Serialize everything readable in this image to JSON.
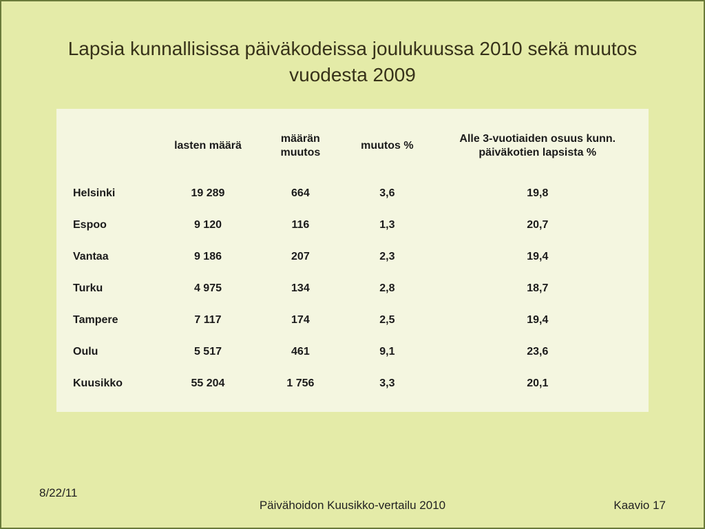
{
  "slide": {
    "title": "Lapsia kunnallisissa päiväkodeissa joulukuussa 2010 sekä muutos vuodesta 2009",
    "background_color": "#e4eba8",
    "border_color": "#6a7a3a",
    "table_background": "#f4f6e0",
    "text_color": "#1b1b1b",
    "title_color": "#37321a",
    "title_fontsize": 28,
    "header_fontsize": 16,
    "cell_fontsize": 16
  },
  "table": {
    "columns": [
      "",
      "lasten määrä",
      "määrän muutos",
      "muutos  %",
      "Alle 3-vuotiaiden osuus kunn. päiväkotien lapsista %"
    ],
    "column_widths_pct": [
      16,
      18,
      14,
      16,
      36
    ],
    "rows": [
      {
        "label": "Helsinki",
        "count": "19 289",
        "change": "664",
        "change_pct": "3,6",
        "under3_pct": "19,8"
      },
      {
        "label": "Espoo",
        "count": "9 120",
        "change": "116",
        "change_pct": "1,3",
        "under3_pct": "20,7"
      },
      {
        "label": "Vantaa",
        "count": "9 186",
        "change": "207",
        "change_pct": "2,3",
        "under3_pct": "19,4"
      },
      {
        "label": "Turku",
        "count": "4 975",
        "change": "134",
        "change_pct": "2,8",
        "under3_pct": "18,7"
      },
      {
        "label": "Tampere",
        "count": "7 117",
        "change": "174",
        "change_pct": "2,5",
        "under3_pct": "19,4"
      },
      {
        "label": "Oulu",
        "count": "5 517",
        "change": "461",
        "change_pct": "9,1",
        "under3_pct": "23,6"
      },
      {
        "label": "Kuusikko",
        "count": "55 204",
        "change": "1 756",
        "change_pct": "3,3",
        "under3_pct": "20,1"
      }
    ]
  },
  "footer": {
    "date": "8/22/11",
    "center": "Päivähoidon Kuusikko-vertailu 2010",
    "page": "Kaavio 17"
  }
}
